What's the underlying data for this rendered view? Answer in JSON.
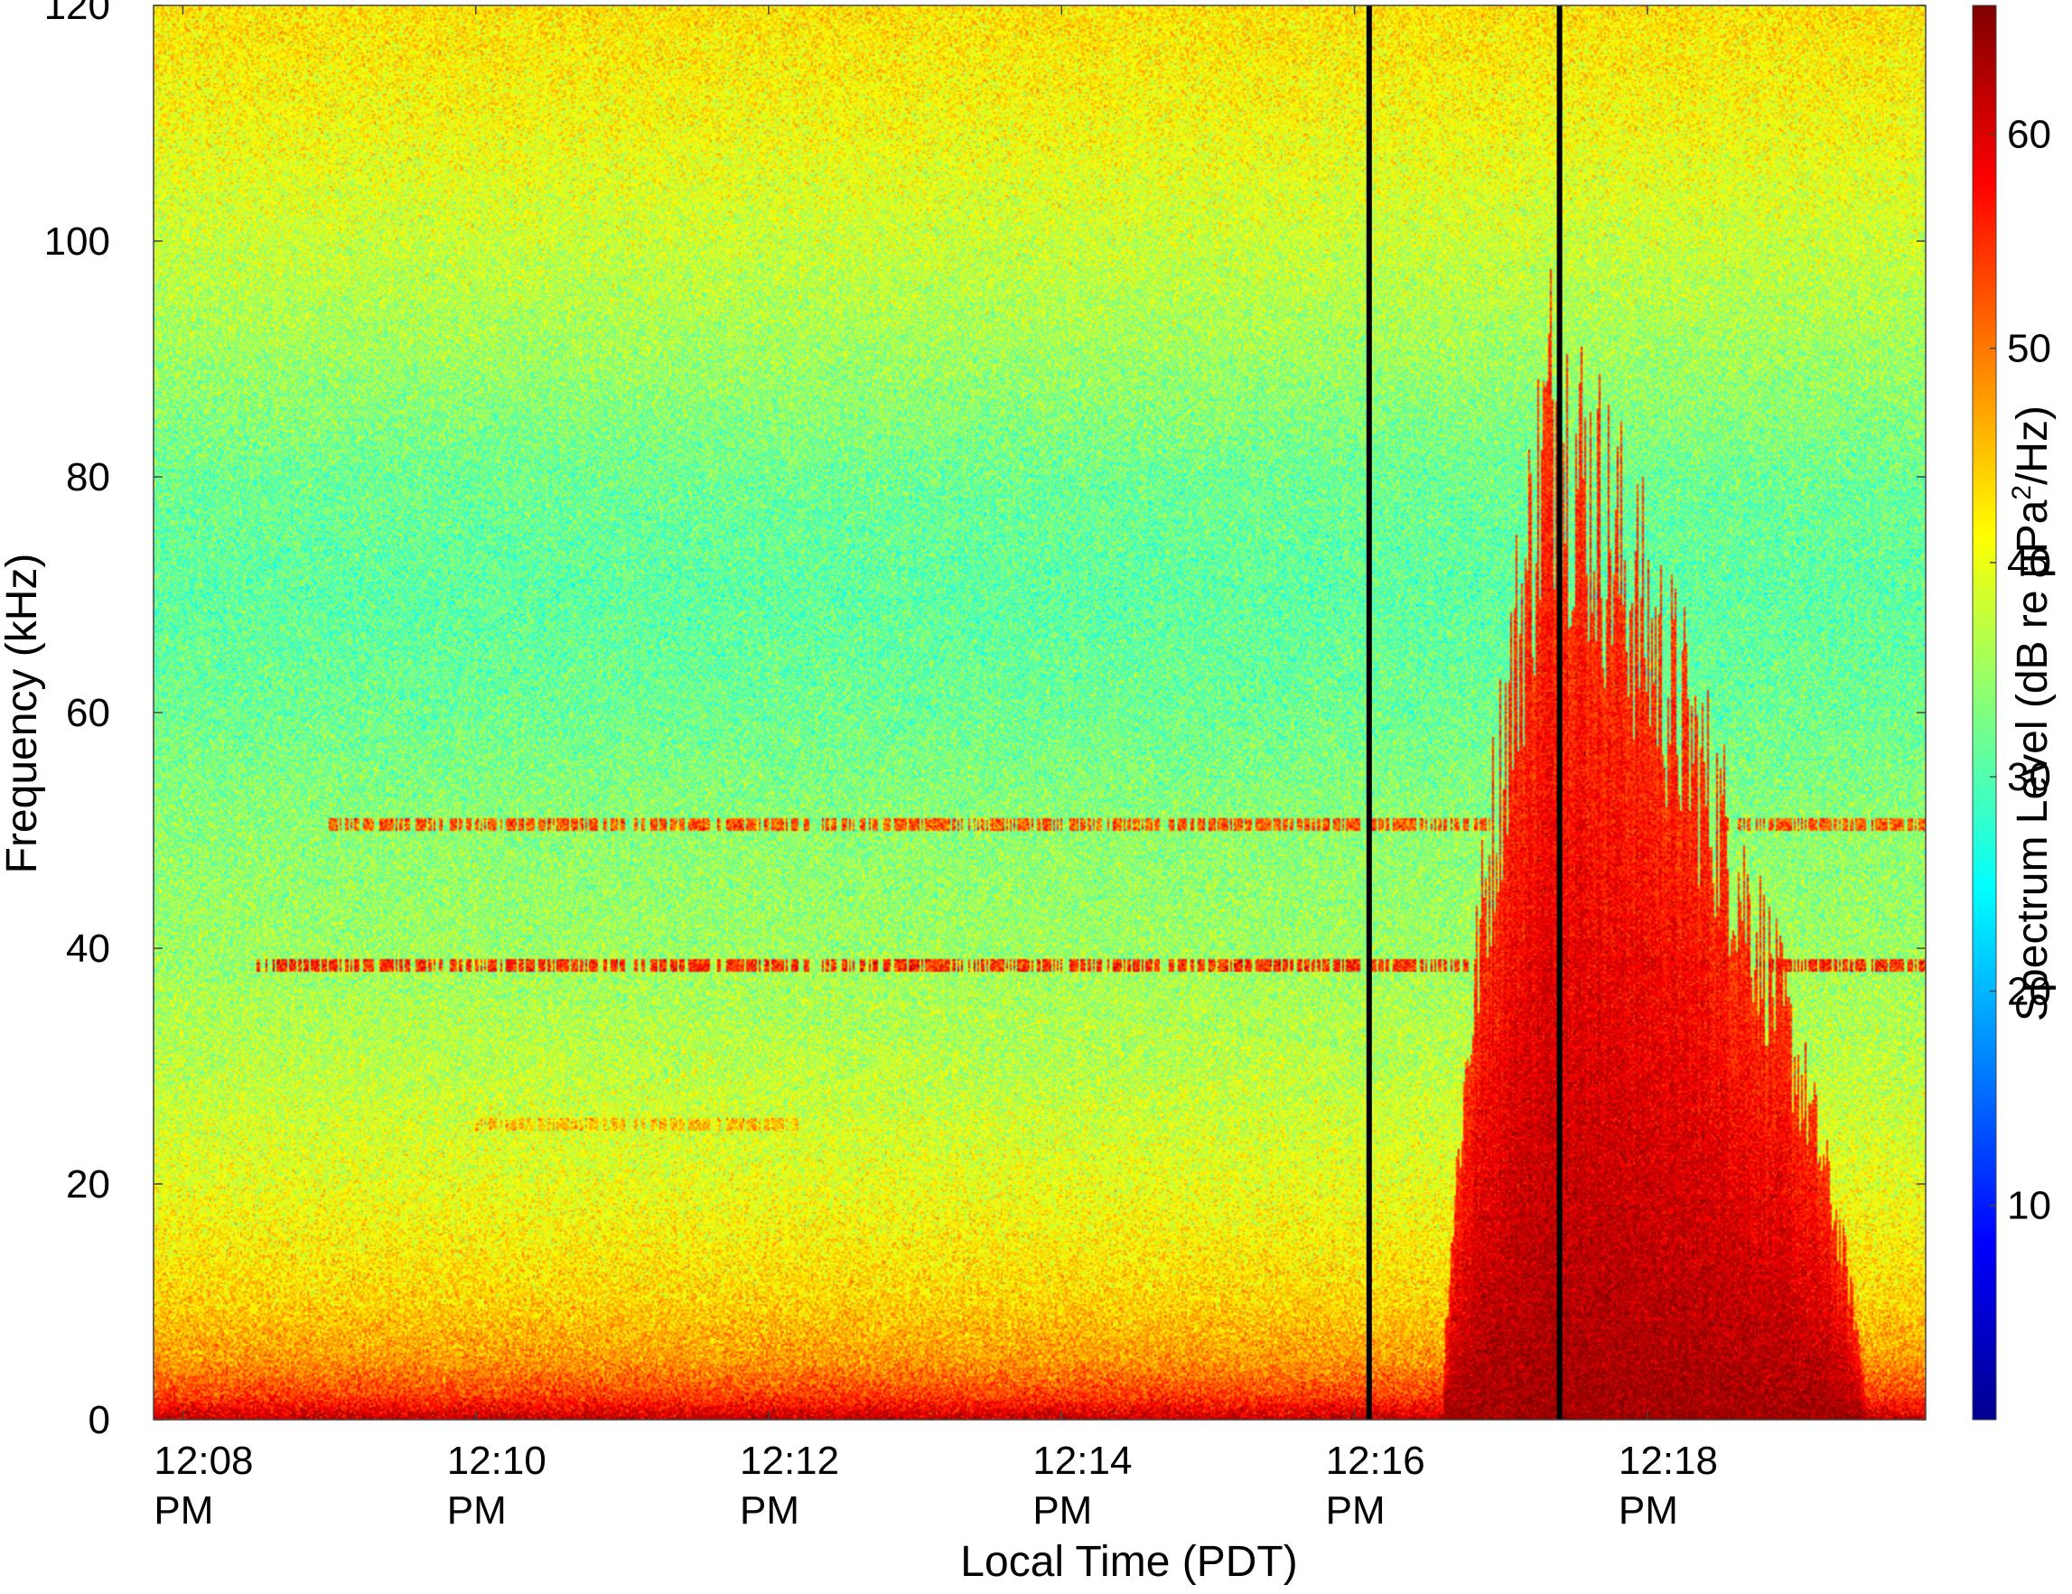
{
  "chart_data": {
    "type": "heatmap",
    "subtype": "spectrogram",
    "xlabel": "Local Time (PDT)",
    "ylabel": "Frequency (kHz)",
    "colorbar_label": "Spectrum Level (dB re μPa²/Hz)",
    "colorbar_label_parts": {
      "main": "Spectrum Level (dB re μPa",
      "sup": "2",
      "tail": "/Hz)"
    },
    "x_ticks": [
      {
        "time": "12:08",
        "ampm": "PM"
      },
      {
        "time": "12:10",
        "ampm": "PM"
      },
      {
        "time": "12:12",
        "ampm": "PM"
      },
      {
        "time": "12:14",
        "ampm": "PM"
      },
      {
        "time": "12:16",
        "ampm": "PM"
      },
      {
        "time": "12:18",
        "ampm": "PM"
      }
    ],
    "x_range_minutes_after_noon": [
      7.8,
      19.9
    ],
    "x_tick_minutes_after_noon": [
      8,
      10,
      12,
      14,
      16,
      18
    ],
    "y_ticks": [
      "0",
      "20",
      "40",
      "60",
      "80",
      "100",
      "120"
    ],
    "ylim": [
      0,
      120
    ],
    "colorbar_ticks": [
      "10",
      "20",
      "30",
      "40",
      "50",
      "60"
    ],
    "clim": [
      0,
      66
    ],
    "colormap": "jet",
    "grid": false,
    "vertical_markers_minutes_after_noon": [
      16.1,
      17.4
    ],
    "marker_color": "#000000",
    "background_spectrum_dB": {
      "frequency_kHz": [
        0,
        2,
        5,
        10,
        20,
        30,
        40,
        50,
        60,
        70,
        80,
        90,
        100,
        110,
        120
      ],
      "level_dB": [
        62,
        54,
        48,
        44,
        40,
        37,
        35,
        34,
        32,
        31,
        32,
        35,
        38,
        41,
        43
      ]
    },
    "tonal_bands": [
      {
        "frequency_kHz": 38.5,
        "level_dB": 55,
        "start": 8.5,
        "end": 19.9
      },
      {
        "frequency_kHz": 50.5,
        "level_dB": 52,
        "start": 9.0,
        "end": 19.9
      },
      {
        "frequency_kHz": 25,
        "level_dB": 45,
        "start": 10.0,
        "end": 12.2
      }
    ],
    "broadband_event": {
      "start": 16.6,
      "peak": 17.35,
      "end": 19.5,
      "max_frequency_kHz": 93,
      "level_dB": 64
    }
  }
}
